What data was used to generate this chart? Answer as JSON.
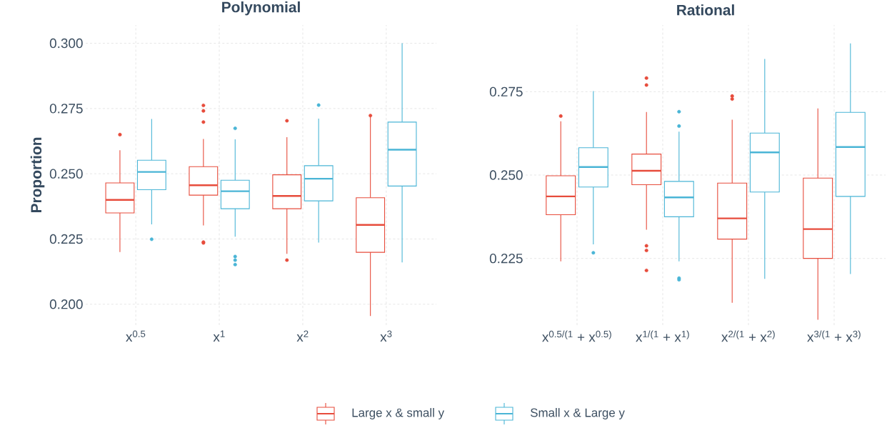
{
  "chart_data": [
    {
      "type": "box",
      "title": "Polynomial",
      "ylabel": "Proportion",
      "categories": [
        "x$^{0.5}$",
        "x$^{1}$",
        "x$^{2}$",
        "x$^{3}$"
      ],
      "ylim": [
        0.192,
        0.307
      ],
      "yticks": [
        {
          "value": 0.2,
          "label": "0.200"
        },
        {
          "value": 0.225,
          "label": "0.225"
        },
        {
          "value": 0.25,
          "label": "0.250"
        },
        {
          "value": 0.275,
          "label": "0.275"
        },
        {
          "value": 0.3,
          "label": "0.300"
        }
      ],
      "grid": true,
      "legend": "bottom",
      "series": [
        {
          "name": "Large x & small y",
          "color": "#e74c3c",
          "boxes": [
            {
              "low": 0.22,
              "q1": 0.235,
              "median": 0.24,
              "q3": 0.2465,
              "high": 0.259,
              "outliers": [
                0.265
              ]
            },
            {
              "low": 0.2302,
              "q1": 0.2418,
              "median": 0.2456,
              "q3": 0.2527,
              "high": 0.2633,
              "outliers": [
                0.2762,
                0.2741,
                0.2698,
                0.2238,
                0.2235
              ]
            },
            {
              "low": 0.2193,
              "q1": 0.2366,
              "median": 0.2415,
              "q3": 0.2496,
              "high": 0.264,
              "outliers": [
                0.2703,
                0.2169
              ]
            },
            {
              "low": 0.1955,
              "q1": 0.2199,
              "median": 0.2304,
              "q3": 0.2408,
              "high": 0.272,
              "outliers": [
                0.2723
              ]
            }
          ]
        },
        {
          "name": "Small x & Large y",
          "color": "#4ab5d6",
          "boxes": [
            {
              "low": 0.2306,
              "q1": 0.2439,
              "median": 0.2507,
              "q3": 0.2552,
              "high": 0.271,
              "outliers": [
                0.2249
              ]
            },
            {
              "low": 0.2259,
              "q1": 0.2366,
              "median": 0.2433,
              "q3": 0.2475,
              "high": 0.2632,
              "outliers": [
                0.2674,
                0.2183,
                0.2169,
                0.2152
              ]
            },
            {
              "low": 0.2236,
              "q1": 0.2396,
              "median": 0.2481,
              "q3": 0.2531,
              "high": 0.2711,
              "outliers": [
                0.2763
              ]
            },
            {
              "low": 0.216,
              "q1": 0.2453,
              "median": 0.2592,
              "q3": 0.2698,
              "high": 0.3
            }
          ]
        }
      ]
    },
    {
      "type": "box",
      "title": "Rational",
      "categories": [
        "x$^{0.5/(1}$ + x$^{0.5)}$",
        "x$^{1/(1}$ + x$^{1)}$",
        "x$^{2/(1}$ + x$^{2)}$",
        "x$^{3/(1}$ + x$^{3)}$"
      ],
      "ylim": [
        0.205,
        0.295
      ],
      "yticks": [
        {
          "value": 0.225,
          "label": "0.225"
        },
        {
          "value": 0.25,
          "label": "0.250"
        },
        {
          "value": 0.275,
          "label": "0.275"
        }
      ],
      "grid": true,
      "series": [
        {
          "color": "#e74c3c",
          "boxes": [
            {
              "low": 0.2241,
              "q1": 0.2381,
              "median": 0.2436,
              "q3": 0.2498,
              "high": 0.2661,
              "outliers": [
                0.2677
              ]
            },
            {
              "low": 0.2336,
              "q1": 0.2471,
              "median": 0.2513,
              "q3": 0.2563,
              "high": 0.2689,
              "outliers": [
                0.2791,
                0.277,
                0.2288,
                0.2274,
                0.2214
              ]
            },
            {
              "low": 0.2117,
              "q1": 0.2308,
              "median": 0.237,
              "q3": 0.2476,
              "high": 0.2666,
              "outliers": [
                0.2737,
                0.2728
              ]
            },
            {
              "low": 0.2066,
              "q1": 0.225,
              "median": 0.2338,
              "q3": 0.2491,
              "high": 0.27
            }
          ]
        },
        {
          "color": "#4ab5d6",
          "boxes": [
            {
              "low": 0.2292,
              "q1": 0.2464,
              "median": 0.2524,
              "q3": 0.2582,
              "high": 0.2752,
              "outliers": [
                0.2267
              ]
            },
            {
              "low": 0.2241,
              "q1": 0.2375,
              "median": 0.2433,
              "q3": 0.2481,
              "high": 0.263,
              "outliers": [
                0.269,
                0.2647,
                0.2191,
                0.2186
              ]
            },
            {
              "low": 0.2189,
              "q1": 0.2449,
              "median": 0.2568,
              "q3": 0.2626,
              "high": 0.2848
            },
            {
              "low": 0.2203,
              "q1": 0.2436,
              "median": 0.2584,
              "q3": 0.2688,
              "high": 0.2895
            }
          ]
        }
      ]
    }
  ]
}
